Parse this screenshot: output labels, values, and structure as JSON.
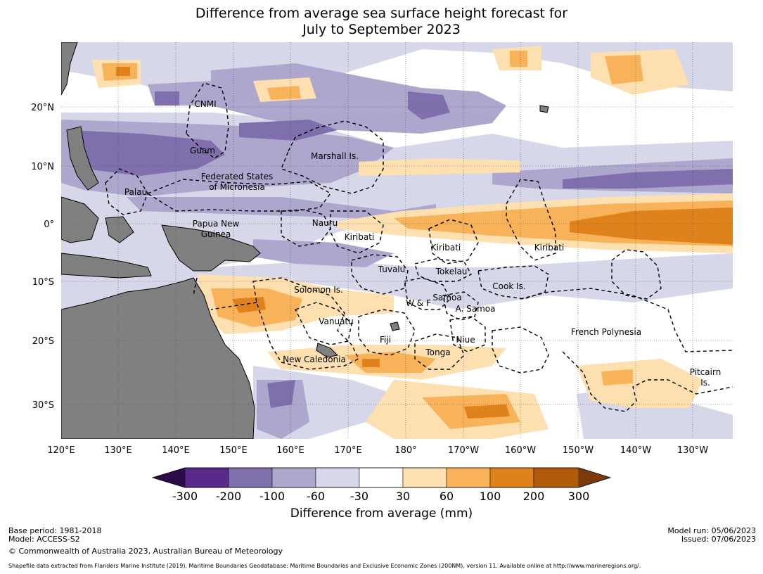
{
  "title": {
    "line1": "Difference from average sea surface height forecast for",
    "line2": "July to September 2023"
  },
  "axes": {
    "lon_ticks": [
      "120°E",
      "130°E",
      "140°E",
      "150°E",
      "160°E",
      "170°E",
      "180°",
      "170°W",
      "160°W",
      "150°W",
      "140°W",
      "130°W"
    ],
    "lat_ticks": [
      "20°N",
      "10°N",
      "0°",
      "10°S",
      "20°S",
      "30°S"
    ]
  },
  "regions": {
    "cnmi": "CNMI",
    "guam": "Guam",
    "marshall": "Marshall Is.",
    "fsm_line1": "Federated States",
    "fsm_line2": "of Micronesia",
    "palau": "Palau",
    "png_line1": "Papua New",
    "png_line2": "Guinea",
    "nauru": "Nauru",
    "kiribati_w": "Kiribati",
    "kiribati_c": "Kiribati",
    "kiribati_e": "Kiribati",
    "tuvalu": "Tuvalu",
    "tokelau": "Tokelau",
    "cook": "Cook Is.",
    "solomon": "Solomon Is.",
    "wf": "W & F",
    "samoa": "Samoa",
    "asamoa": "A. Samoa",
    "vanuatu": "Vanuatu",
    "fiji": "Fiji",
    "niue": "Niue",
    "tonga": "Tonga",
    "french_polynesia": "French Polynesia",
    "new_caledonia": "New Caledonia",
    "pitcairn_line1": "Pitcairn",
    "pitcairn_line2": "Is."
  },
  "colorbar": {
    "title": "Difference from average (mm)",
    "labels": [
      "-300",
      "-200",
      "-100",
      "-60",
      "-30",
      "30",
      "60",
      "100",
      "200",
      "300"
    ],
    "colors": [
      "#2d0a4a",
      "#5a2a8a",
      "#7f6fac",
      "#ada6cd",
      "#d7d7ea",
      "#ffffff",
      "#fddfb0",
      "#f8b35a",
      "#e0821b",
      "#b05a0e",
      "#7a3a0a"
    ]
  },
  "footer": {
    "base_period": "Base period: 1981-2018",
    "model": "Model: ACCESS-S2",
    "copyright": "© Commonwealth of Australia 2023, Australian Bureau of Meteorology",
    "model_run": "Model run: 05/06/2023",
    "issued": "Issued: 07/06/2023",
    "shapefile": "Shapefile data extracted from Flanders Marine Institute (2019), Maritime Boundaries Geodatabase: Maritime Boundaries and Exclusive Economic Zones (200NM), version 11. Available online at http://www.marineregions.org/."
  }
}
